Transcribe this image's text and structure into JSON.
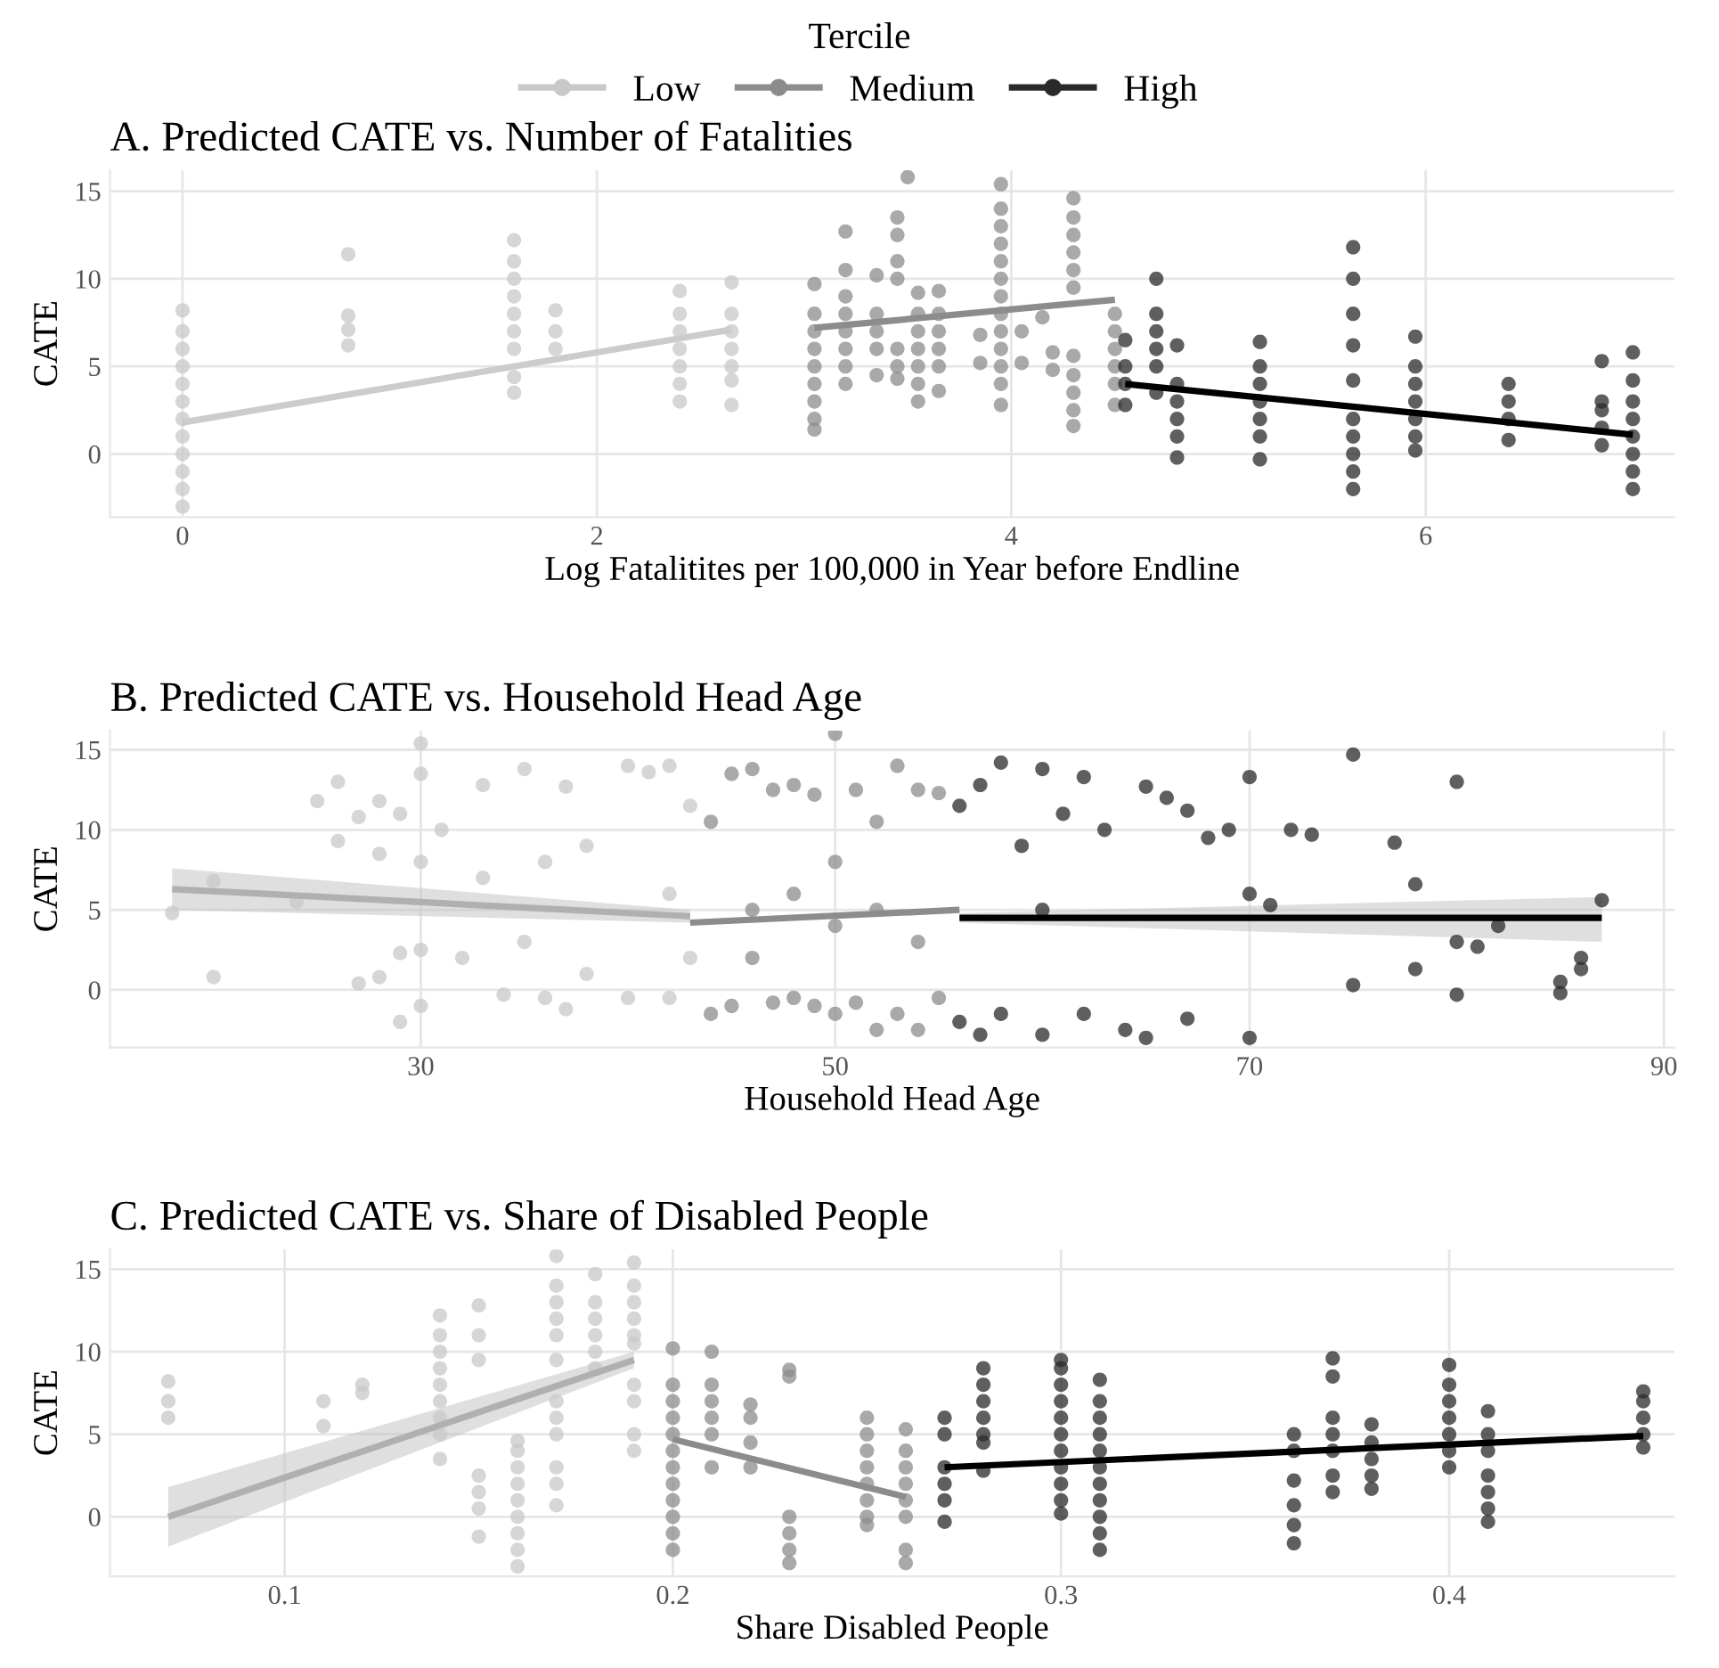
{
  "chart_data": [
    {
      "type": "scatter",
      "title": "A. Predicted CATE vs. Number of Fatalities",
      "xlabel": "Log Fatalitites per 100,000 in Year before Endline",
      "ylabel": "CATE",
      "legend_title": "Tercile",
      "legend": "top",
      "grid": true,
      "marker": "circle",
      "xlim": [
        -0.35,
        7.2
      ],
      "xticks": [
        0,
        2,
        4,
        6
      ],
      "ylim": [
        -3.6,
        16.2
      ],
      "yticks": [
        0,
        5,
        10,
        15
      ],
      "series": [
        {
          "name": "Low",
          "color": "#c8c8c8",
          "x": [
            0,
            0,
            0,
            0,
            0,
            0,
            0,
            0,
            0,
            0,
            0,
            0,
            0.8,
            0.8,
            0.8,
            0.8,
            1.6,
            1.6,
            1.6,
            1.6,
            1.6,
            1.6,
            1.6,
            1.6,
            1.6,
            1.8,
            1.8,
            1.8,
            2.4,
            2.4,
            2.4,
            2.4,
            2.4,
            2.4,
            2.4,
            2.65,
            2.65,
            2.65,
            2.65,
            2.65,
            2.65,
            2.65
          ],
          "values": [
            -3,
            -2,
            -1,
            0,
            1,
            2,
            3,
            4,
            5,
            6,
            7,
            8.2,
            11.4,
            7.9,
            7.1,
            6.2,
            3.5,
            4.4,
            6,
            7,
            8,
            9,
            10,
            11,
            12.2,
            6,
            7,
            8.2,
            3,
            4,
            5,
            6,
            7,
            8,
            9.3,
            2.8,
            4.2,
            5,
            6,
            7,
            8,
            9.8
          ]
        },
        {
          "name": "Medium",
          "color": "#8c8c8c",
          "x": [
            3.05,
            3.05,
            3.05,
            3.05,
            3.05,
            3.05,
            3.05,
            3.05,
            3.05,
            3.2,
            3.2,
            3.2,
            3.2,
            3.2,
            3.2,
            3.2,
            3.2,
            3.35,
            3.35,
            3.35,
            3.35,
            3.35,
            3.45,
            3.45,
            3.45,
            3.45,
            3.45,
            3.45,
            3.45,
            3.5,
            3.55,
            3.55,
            3.55,
            3.55,
            3.55,
            3.55,
            3.55,
            3.65,
            3.65,
            3.65,
            3.65,
            3.65,
            3.65,
            3.85,
            3.85,
            3.95,
            3.95,
            3.95,
            3.95,
            3.95,
            3.95,
            3.95,
            3.95,
            3.95,
            3.95,
            3.95,
            3.95,
            3.95,
            4.05,
            4.05,
            4.15,
            4.2,
            4.2,
            4.3,
            4.3,
            4.3,
            4.3,
            4.3,
            4.3,
            4.3,
            4.3,
            4.3,
            4.3,
            4.3,
            4.5,
            4.5,
            4.5,
            4.5,
            4.5,
            4.5
          ],
          "values": [
            1.4,
            2,
            3,
            4,
            5,
            6,
            7,
            8,
            9.7,
            4,
            5,
            6,
            7,
            8,
            9,
            10.5,
            12.7,
            4.5,
            6,
            7,
            8,
            10.2,
            4.3,
            5,
            6,
            10,
            11,
            12.5,
            13.5,
            15.8,
            3,
            4,
            5,
            6,
            7,
            8,
            9.2,
            3.6,
            5,
            6,
            7,
            8,
            9.3,
            5.2,
            6.8,
            2.8,
            4,
            5,
            6,
            7,
            8,
            9,
            10,
            11,
            12,
            13,
            14,
            15.4,
            5.2,
            7,
            7.8,
            4.8,
            5.8,
            1.6,
            2.5,
            3.5,
            4.5,
            5.6,
            9.5,
            10.5,
            11.5,
            12.5,
            13.5,
            14.6,
            2.8,
            4,
            5,
            6,
            7,
            8
          ]
        },
        {
          "name": "High",
          "color": "#2a2a2a",
          "x": [
            4.55,
            4.55,
            4.55,
            4.55,
            4.7,
            4.7,
            4.7,
            4.7,
            4.7,
            4.7,
            4.8,
            4.8,
            4.8,
            4.8,
            4.8,
            4.8,
            5.2,
            5.2,
            5.2,
            5.2,
            5.2,
            5.2,
            5.2,
            5.65,
            5.65,
            5.65,
            5.65,
            5.65,
            5.65,
            5.65,
            5.65,
            5.65,
            5.65,
            5.95,
            5.95,
            5.95,
            5.95,
            5.95,
            5.95,
            5.95,
            6.4,
            6.4,
            6.4,
            6.4,
            6.85,
            6.85,
            6.85,
            6.85,
            6.85,
            7,
            7,
            7,
            7,
            7,
            7,
            7,
            7
          ],
          "values": [
            2.8,
            4,
            5,
            6.5,
            3.5,
            5,
            6,
            7,
            8,
            10,
            -0.2,
            1,
            2,
            3,
            4,
            6.2,
            -0.3,
            1,
            2,
            3,
            4,
            5,
            6.4,
            4.2,
            -2,
            -1,
            0,
            1,
            2,
            6.2,
            8,
            10,
            11.8,
            0.2,
            1,
            2,
            3,
            4,
            5,
            6.7,
            0.8,
            2,
            3,
            4,
            0.5,
            1.5,
            2.5,
            3,
            5.3,
            -2,
            -1,
            0,
            1,
            2,
            3,
            4.2,
            5.8
          ]
        },
        {
          "type": "line",
          "marker": "none",
          "color": "#cccccc",
          "x": [
            0,
            2.65
          ],
          "values": [
            1.8,
            7.1
          ]
        },
        {
          "type": "line",
          "marker": "none",
          "color": "#8c8c8c",
          "x": [
            3.05,
            4.5
          ],
          "values": [
            7.2,
            8.8
          ]
        },
        {
          "type": "line",
          "marker": "none",
          "color": "#000000",
          "x": [
            4.55,
            7
          ],
          "values": [
            4.0,
            1.1
          ]
        }
      ]
    },
    {
      "type": "scatter",
      "title": "B. Predicted CATE vs. Household Head Age",
      "xlabel": "Household Head Age",
      "ylabel": "CATE",
      "grid": true,
      "marker": "circle",
      "xlim": [
        15,
        90.5
      ],
      "xticks": [
        30,
        50,
        70,
        90
      ],
      "ylim": [
        -3.6,
        16.2
      ],
      "yticks": [
        0,
        5,
        10,
        15
      ],
      "series": [
        {
          "color": "#c8c8c8",
          "x": [
            18,
            20,
            20,
            24,
            25,
            26,
            26,
            27,
            27,
            28,
            28,
            28,
            29,
            29,
            29,
            30,
            30,
            30,
            30,
            30,
            31,
            32,
            33,
            33,
            34,
            35,
            35,
            36,
            36,
            37,
            37,
            38,
            38,
            40,
            40,
            41,
            42,
            42,
            42,
            43,
            43
          ],
          "values": [
            4.8,
            0.8,
            6.8,
            5.5,
            11.8,
            13,
            9.3,
            0.4,
            10.8,
            11.8,
            8.5,
            0.8,
            -2,
            2.3,
            11,
            -1,
            15.4,
            13.5,
            8,
            2.5,
            10,
            2,
            12.8,
            7,
            -0.3,
            13.8,
            3,
            -0.5,
            8,
            -1.2,
            12.7,
            1,
            9,
            14,
            -0.5,
            13.6,
            -0.5,
            14,
            6,
            2,
            11.5
          ]
        },
        {
          "color": "#8c8c8c",
          "x": [
            44,
            44,
            45,
            45,
            46,
            46,
            47,
            47,
            48,
            48,
            49,
            49,
            50,
            50,
            50,
            51,
            51,
            52,
            52,
            53,
            53,
            54,
            54,
            55,
            55,
            46,
            48,
            50,
            52,
            54
          ],
          "values": [
            10.5,
            -1.5,
            -1,
            13.5,
            13.8,
            2,
            -0.8,
            12.5,
            -0.5,
            12.8,
            12.2,
            -1,
            16,
            -1.5,
            8,
            12.5,
            -0.8,
            10.5,
            -2.5,
            14,
            -1.5,
            12.5,
            -2.5,
            -0.5,
            12.3,
            5,
            6,
            4,
            5,
            3
          ]
        },
        {
          "color": "#2a2a2a",
          "x": [
            56,
            56,
            57,
            57,
            58,
            58,
            59,
            60,
            60,
            60,
            61,
            62,
            62,
            63,
            64,
            65,
            65,
            66,
            67,
            67,
            68,
            69,
            70,
            70,
            70,
            71,
            72,
            73,
            75,
            75,
            77,
            78,
            78,
            80,
            80,
            80,
            81,
            82,
            85,
            85,
            86,
            86,
            87
          ],
          "values": [
            11.5,
            -2,
            12.8,
            -2.8,
            14.2,
            -1.5,
            9,
            13.8,
            -2.8,
            5,
            11,
            13.3,
            -1.5,
            10,
            -2.5,
            12.7,
            -3,
            12,
            11.2,
            -1.8,
            9.5,
            10,
            13.3,
            -3,
            6,
            5.3,
            10,
            9.7,
            14.7,
            0.3,
            9.2,
            6.6,
            1.3,
            13,
            -0.3,
            3,
            2.7,
            4,
            0.5,
            -0.2,
            2,
            1.3,
            5.6
          ]
        },
        {
          "type": "line",
          "marker": "none",
          "color": "#b0b0b0",
          "x": [
            18,
            43
          ],
          "values": [
            6.3,
            4.6
          ],
          "lower": [
            5.0,
            4.2
          ],
          "upper": [
            7.6,
            5.0
          ]
        },
        {
          "type": "line",
          "marker": "none",
          "color": "#8c8c8c",
          "x": [
            43,
            56
          ],
          "values": [
            4.2,
            5.0
          ]
        },
        {
          "type": "line",
          "marker": "none",
          "color": "#000000",
          "x": [
            56,
            87
          ],
          "values": [
            4.5,
            4.5
          ],
          "lower": [
            4.2,
            3.0
          ],
          "upper": [
            4.8,
            5.8
          ]
        }
      ]
    },
    {
      "type": "scatter",
      "title": "C. Predicted CATE vs. Share of Disabled People",
      "xlabel": "Share Disabled People",
      "ylabel": "CATE",
      "grid": true,
      "marker": "circle",
      "xlim": [
        0.055,
        0.458
      ],
      "xticks": [
        0.1,
        0.2,
        0.3,
        0.4
      ],
      "ylim": [
        -3.6,
        16.2
      ],
      "yticks": [
        0,
        5,
        10,
        15
      ],
      "series": [
        {
          "color": "#c8c8c8",
          "x": [
            0.07,
            0.07,
            0.07,
            0.11,
            0.11,
            0.12,
            0.12,
            0.14,
            0.14,
            0.14,
            0.14,
            0.14,
            0.14,
            0.14,
            0.14,
            0.14,
            0.15,
            0.15,
            0.15,
            0.15,
            0.15,
            0.15,
            0.15,
            0.16,
            0.16,
            0.16,
            0.16,
            0.16,
            0.16,
            0.16,
            0.16,
            0.16,
            0.17,
            0.17,
            0.17,
            0.17,
            0.17,
            0.17,
            0.17,
            0.17,
            0.17,
            0.17,
            0.17,
            0.17,
            0.18,
            0.18,
            0.18,
            0.18,
            0.18,
            0.18,
            0.19,
            0.19,
            0.19,
            0.19,
            0.19,
            0.19,
            0.19,
            0.19,
            0.19,
            0.19
          ],
          "values": [
            6,
            7,
            8.2,
            5.5,
            7,
            7.5,
            8,
            3.5,
            5,
            6,
            7,
            8,
            9,
            10,
            11,
            12.2,
            -1.2,
            0.5,
            1.5,
            2.5,
            9.5,
            11,
            12.8,
            -3,
            -2,
            -1,
            0,
            1,
            2,
            3,
            4,
            4.6,
            0.7,
            2,
            3,
            5,
            6,
            7,
            9.5,
            11,
            12,
            13,
            14,
            15.8,
            9,
            10,
            11,
            12,
            13,
            14.7,
            4,
            5,
            7,
            8,
            10.5,
            11,
            12,
            13,
            14,
            15.4
          ]
        },
        {
          "color": "#8c8c8c",
          "x": [
            0.2,
            0.2,
            0.2,
            0.2,
            0.2,
            0.2,
            0.2,
            0.2,
            0.2,
            0.2,
            0.2,
            0.2,
            0.21,
            0.21,
            0.21,
            0.21,
            0.21,
            0.21,
            0.22,
            0.22,
            0.22,
            0.22,
            0.23,
            0.23,
            0.23,
            0.23,
            0.23,
            0.23,
            0.25,
            0.25,
            0.25,
            0.25,
            0.25,
            0.25,
            0.25,
            0.25,
            0.26,
            0.26,
            0.26,
            0.26,
            0.26,
            0.26,
            0.26,
            0.26
          ],
          "values": [
            -2,
            -1,
            0,
            1,
            2,
            3,
            4,
            5,
            6,
            7,
            8,
            10.2,
            3,
            5,
            6,
            7,
            8,
            10,
            3,
            4.5,
            6,
            6.8,
            -2.8,
            -2,
            -1,
            0,
            8.5,
            8.9,
            -0.5,
            0,
            1,
            2,
            3,
            4,
            5,
            6,
            -2.8,
            -2,
            0,
            1,
            2,
            3,
            4,
            5.3
          ]
        },
        {
          "color": "#2a2a2a",
          "x": [
            0.27,
            0.27,
            0.27,
            0.27,
            0.27,
            0.27,
            0.28,
            0.28,
            0.28,
            0.28,
            0.28,
            0.28,
            0.28,
            0.3,
            0.3,
            0.3,
            0.3,
            0.3,
            0.3,
            0.3,
            0.3,
            0.3,
            0.3,
            0.3,
            0.31,
            0.31,
            0.31,
            0.31,
            0.31,
            0.31,
            0.31,
            0.31,
            0.31,
            0.31,
            0.31,
            0.36,
            0.36,
            0.36,
            0.36,
            0.36,
            0.36,
            0.37,
            0.37,
            0.37,
            0.37,
            0.37,
            0.37,
            0.37,
            0.38,
            0.38,
            0.38,
            0.38,
            0.38,
            0.4,
            0.4,
            0.4,
            0.4,
            0.4,
            0.4,
            0.4,
            0.41,
            0.41,
            0.41,
            0.41,
            0.41,
            0.41,
            0.41,
            0.45,
            0.45,
            0.45,
            0.45,
            0.45
          ],
          "values": [
            -0.3,
            1,
            2,
            3,
            5,
            6,
            2.8,
            4.5,
            5,
            6,
            7,
            8,
            9,
            0.2,
            1,
            2,
            3,
            4,
            5,
            6,
            7,
            8,
            9,
            9.5,
            -2,
            -1,
            0,
            1,
            2,
            3,
            4,
            5,
            6,
            7,
            8.3,
            -1.6,
            -0.5,
            0.7,
            2.2,
            4,
            5,
            1.5,
            2.5,
            4,
            5,
            6,
            8.5,
            9.6,
            1.7,
            2.5,
            3.5,
            4.5,
            5.6,
            3,
            4,
            5,
            6,
            7,
            8,
            9.2,
            -0.3,
            0.5,
            1.5,
            2.5,
            4,
            5,
            6.4,
            4.2,
            5,
            6,
            7,
            7.6
          ]
        },
        {
          "type": "line",
          "marker": "none",
          "color": "#b0b0b0",
          "x": [
            0.07,
            0.19
          ],
          "values": [
            0.0,
            9.5
          ],
          "lower": [
            -1.8,
            9.0
          ],
          "upper": [
            1.8,
            10.0
          ]
        },
        {
          "type": "line",
          "marker": "none",
          "color": "#8c8c8c",
          "x": [
            0.2,
            0.26
          ],
          "values": [
            4.7,
            1.2
          ]
        },
        {
          "type": "line",
          "marker": "none",
          "color": "#000000",
          "x": [
            0.27,
            0.45
          ],
          "values": [
            3.0,
            4.9
          ]
        }
      ]
    }
  ]
}
